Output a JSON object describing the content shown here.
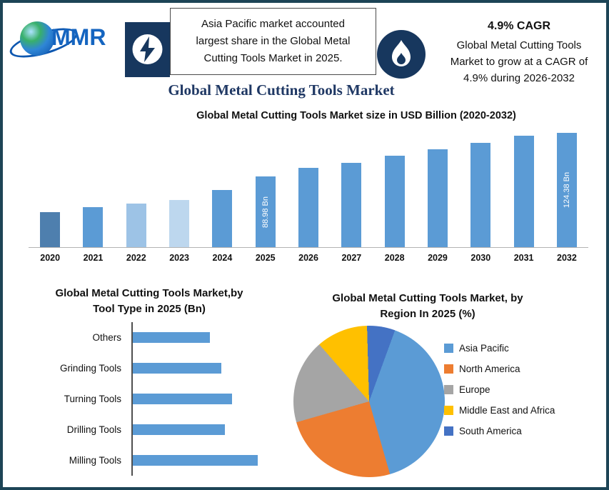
{
  "brand": {
    "name": "MMR"
  },
  "header": {
    "highlight": "Asia Pacific market accounted\nlargest share in the Global Metal\nCutting Tools Market in 2025.",
    "cagr_title": "4.9% CAGR",
    "cagr_text": "Global Metal Cutting Tools\nMarket to grow at a CAGR of\n4.9% during 2026-2032"
  },
  "main_title": "Global Metal Cutting Tools Market",
  "colors": {
    "accent_navy": "#17375E",
    "title_blue": "#1F3864",
    "bar_blue": "#5B9BD5",
    "border": "#1D4456"
  },
  "chart_data": [
    {
      "type": "bar",
      "title": "Global Metal Cutting Tools Market size in USD Billion (2020-2032)",
      "categories": [
        "2020",
        "2021",
        "2022",
        "2023",
        "2024",
        "2025",
        "2026",
        "2027",
        "2028",
        "2029",
        "2030",
        "2031",
        "2032"
      ],
      "values": [
        60,
        64,
        67,
        70,
        78,
        88.98,
        96,
        100,
        106,
        111,
        116,
        122,
        124.38
      ],
      "bar_labels": {
        "2025": "88.98 Bn",
        "2032": "124.38 Bn"
      },
      "colors": [
        "#4E7FAE",
        "#5B9BD5",
        "#9DC3E6",
        "#BDD7EE",
        "#5B9BD5",
        "#5B9BD5",
        "#5B9BD5",
        "#5B9BD5",
        "#5B9BD5",
        "#5B9BD5",
        "#5B9BD5",
        "#5B9BD5",
        "#5B9BD5"
      ],
      "ylabel": "USD Billion",
      "ylim": [
        32,
        130
      ],
      "grid": false
    },
    {
      "type": "bar",
      "orientation": "horizontal",
      "title": "Global Metal Cutting Tools Market,by\nTool Type in 2025 (Bn)",
      "categories": [
        "Others",
        "Grinding Tools",
        "Turning Tools",
        "Drilling Tools",
        "Milling Tools"
      ],
      "values": [
        12.7,
        14.5,
        16.3,
        15.1,
        20.5
      ],
      "xlim": [
        0,
        24
      ],
      "color": "#5B9BD5",
      "grid": false
    },
    {
      "type": "pie",
      "title": "Global Metal Cutting Tools Market, by\nRegion In 2025 (%)",
      "labels": [
        "Asia Pacific",
        "North America",
        "Europe",
        "Middle East and Africa",
        "South America"
      ],
      "values": [
        40,
        25,
        18,
        11,
        6
      ],
      "colors": [
        "#5B9BD5",
        "#ED7D31",
        "#A5A5A5",
        "#FFC000",
        "#4472C4"
      ],
      "start_angle": 20,
      "legend_position": "right"
    }
  ]
}
